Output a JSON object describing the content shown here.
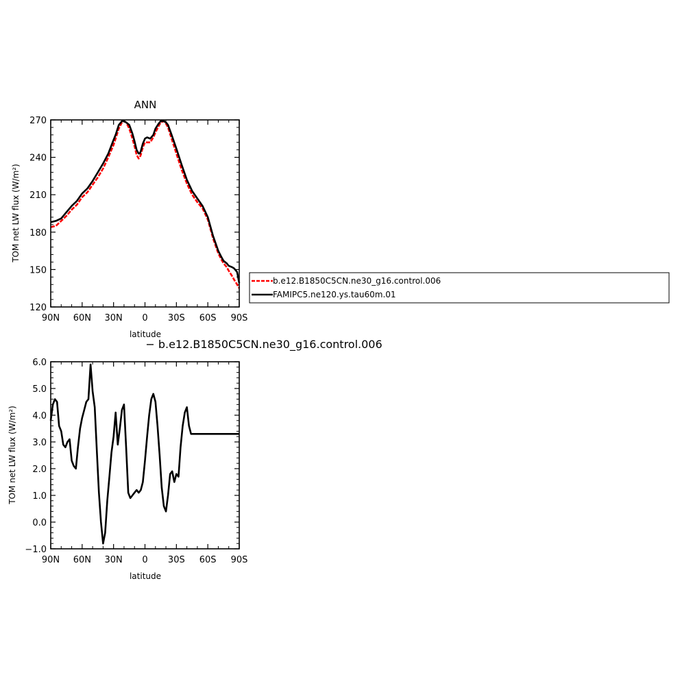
{
  "chart_data": [
    {
      "type": "line",
      "title": "ANN",
      "xlabel": "latitude",
      "ylabel": "TOM net LW flux (W/m²)",
      "xlim": [
        90,
        -90
      ],
      "ylim": [
        120,
        270
      ],
      "x_ticks": [
        90,
        60,
        30,
        0,
        -30,
        -60,
        -90
      ],
      "x_tick_labels": [
        "90N",
        "60N",
        "30N",
        "0",
        "30S",
        "60S",
        "90S"
      ],
      "y_ticks": [
        120,
        150,
        180,
        210,
        240,
        270
      ],
      "y_tick_labels": [
        "120",
        "150",
        "180",
        "210",
        "240",
        "270"
      ],
      "legend_position": "right",
      "series": [
        {
          "name": "b.e12.B1850C5CN.ne30_g16.control.006",
          "color": "#ff0000",
          "style": "dashed",
          "x": [
            90,
            85,
            80,
            75,
            70,
            65,
            60,
            55,
            50,
            45,
            40,
            35,
            30,
            28,
            25,
            22,
            20,
            18,
            15,
            12,
            10,
            8,
            6,
            5,
            4,
            2,
            0,
            -2,
            -5,
            -8,
            -10,
            -13,
            -15,
            -18,
            -20,
            -22,
            -25,
            -30,
            -35,
            -40,
            -45,
            -50,
            -55,
            -60,
            -65,
            -70,
            -73,
            -75,
            -78,
            -80,
            -83,
            -85,
            -88,
            -90
          ],
          "y": [
            184,
            185,
            189,
            193,
            198,
            202,
            208,
            212,
            218,
            224,
            231,
            240,
            250,
            255,
            263,
            268,
            269,
            268,
            263,
            255,
            249,
            242,
            239,
            240,
            242,
            248,
            252,
            252,
            252,
            256,
            260,
            265,
            268,
            269,
            267,
            264,
            256,
            243,
            230,
            219,
            210,
            204,
            199,
            190,
            175,
            163,
            158,
            155,
            152,
            149,
            145,
            142,
            138,
            135
          ]
        },
        {
          "name": "FAMIPC5.ne120.ys.tau60m.01",
          "color": "#000000",
          "style": "solid",
          "x": [
            90,
            85,
            80,
            75,
            70,
            65,
            60,
            55,
            50,
            45,
            40,
            35,
            30,
            28,
            25,
            22,
            20,
            18,
            15,
            12,
            10,
            8,
            6,
            5,
            4,
            2,
            0,
            -2,
            -5,
            -8,
            -10,
            -13,
            -15,
            -18,
            -20,
            -22,
            -25,
            -30,
            -35,
            -40,
            -45,
            -50,
            -55,
            -60,
            -65,
            -70,
            -73,
            -75,
            -78,
            -80,
            -83,
            -85,
            -88,
            -90
          ],
          "y": [
            188,
            189,
            191,
            196,
            201,
            205,
            211,
            215,
            221,
            228,
            235,
            243,
            254,
            258,
            266,
            269,
            269,
            268,
            266,
            259,
            253,
            246,
            243,
            243,
            245,
            251,
            255,
            256,
            255,
            258,
            263,
            267,
            269,
            269,
            268,
            266,
            259,
            247,
            234,
            222,
            213,
            207,
            201,
            192,
            177,
            165,
            160,
            157,
            155,
            153,
            152,
            151,
            148,
            139
          ]
        }
      ]
    },
    {
      "type": "line",
      "title": "",
      "subtitle": "− b.e12.B1850C5CN.ne30_g16.control.006",
      "xlabel": "latitude",
      "ylabel": "TOM net LW flux (W/m²)",
      "xlim": [
        90,
        -90
      ],
      "ylim": [
        -1.0,
        6.0
      ],
      "x_ticks": [
        90,
        60,
        30,
        0,
        -30,
        -60,
        -90
      ],
      "x_tick_labels": [
        "90N",
        "60N",
        "30N",
        "0",
        "30S",
        "60S",
        "90S"
      ],
      "y_ticks": [
        -1.0,
        0.0,
        1.0,
        2.0,
        3.0,
        4.0,
        5.0,
        6.0
      ],
      "y_tick_labels": [
        "−1.0",
        "0.0",
        "1.0",
        "2.0",
        "3.0",
        "4.0",
        "5.0",
        "6.0"
      ],
      "series": [
        {
          "color": "#000000",
          "style": "solid",
          "x": [
            90,
            88,
            86,
            84,
            82,
            80,
            78,
            76,
            74,
            72,
            70,
            68,
            66,
            64,
            62,
            60,
            58,
            56,
            54,
            52,
            50,
            48,
            46,
            44,
            42,
            40,
            38,
            36,
            34,
            32,
            30,
            28,
            26,
            24,
            22,
            20,
            18,
            16,
            14,
            12,
            10,
            8,
            6,
            4,
            2,
            0,
            -2,
            -4,
            -6,
            -8,
            -10,
            -12,
            -14,
            -16,
            -18,
            -20,
            -22,
            -24,
            -26,
            -28,
            -30,
            -32,
            -34,
            -36,
            -38,
            -40,
            -42,
            -44,
            -46,
            -48,
            -50,
            -52,
            -54,
            -56,
            -58,
            -60,
            -62,
            -64,
            -66,
            -68,
            -70,
            -72,
            -74,
            -76,
            -78,
            -80,
            -82,
            -84,
            -86,
            -88,
            -90
          ],
          "y": [
            3.8,
            4.4,
            4.6,
            4.5,
            3.6,
            3.4,
            2.9,
            2.8,
            3.0,
            3.1,
            2.3,
            2.1,
            2.0,
            2.8,
            3.5,
            3.9,
            4.2,
            4.5,
            4.6,
            5.9,
            4.9,
            4.3,
            2.7,
            1.1,
            0.0,
            -0.8,
            -0.4,
            0.8,
            1.7,
            2.6,
            3.2,
            4.1,
            2.9,
            3.5,
            4.2,
            4.4,
            2.8,
            1.1,
            0.9,
            1.0,
            1.1,
            1.2,
            1.1,
            1.2,
            1.5,
            2.3,
            3.2,
            4.0,
            4.6,
            4.8,
            4.5,
            3.6,
            2.5,
            1.3,
            0.6,
            0.4,
            1.0,
            1.8,
            1.9,
            1.5,
            1.8,
            1.7,
            2.8,
            3.6,
            4.1,
            4.3,
            3.6,
            3.3,
            3.3,
            3.3,
            3.3,
            3.3,
            3.3,
            3.3,
            3.3,
            3.3,
            3.3,
            3.3,
            3.3,
            3.3,
            3.3,
            3.3,
            3.3,
            3.3,
            3.3,
            3.3,
            3.3,
            3.3,
            3.3,
            3.3,
            3.3
          ]
        }
      ]
    }
  ]
}
